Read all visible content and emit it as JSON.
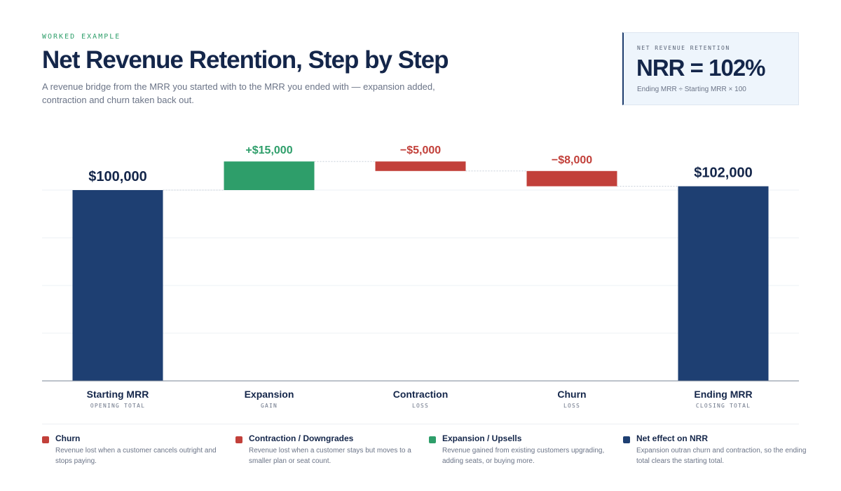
{
  "header": {
    "eyebrow": "WORKED EXAMPLE",
    "title": "Net Revenue Retention, Step by Step",
    "subtitle": "A revenue bridge from the MRR you started with to the MRR you ended with — expansion added, contraction and churn taken back out."
  },
  "kpi": {
    "label": "NET REVENUE RETENTION",
    "value": "NRR = 102%",
    "formula": "Ending MRR ÷ Starting MRR × 100"
  },
  "colors": {
    "total": "#1e3f72",
    "gain": "#2e9e6a",
    "loss": "#c2403a",
    "text_dark": "#14264a",
    "text_muted": "#6b7487"
  },
  "chart_data": {
    "type": "bar",
    "subtype": "waterfall",
    "categories": [
      "Starting MRR",
      "Expansion",
      "Contraction",
      "Churn",
      "Ending MRR"
    ],
    "sublabels": [
      "OPENING TOTAL",
      "GAIN",
      "LOSS",
      "LOSS",
      "CLOSING TOTAL"
    ],
    "kinds": [
      "total",
      "gain",
      "loss",
      "loss",
      "total"
    ],
    "values": [
      100000,
      15000,
      -5000,
      -8000,
      102000
    ],
    "value_labels": [
      "$100,000",
      "+$15,000",
      "−$5,000",
      "−$8,000",
      "$102,000"
    ],
    "ylim": [
      0,
      115000
    ],
    "grid": true,
    "connectors": true
  },
  "legend": [
    {
      "title": "Churn",
      "desc": "Revenue lost when a customer cancels outright and stops paying.",
      "color": "#c2403a"
    },
    {
      "title": "Contraction / Downgrades",
      "desc": "Revenue lost when a customer stays but moves to a smaller plan or seat count.",
      "color": "#c2403a"
    },
    {
      "title": "Expansion / Upsells",
      "desc": "Revenue gained from existing customers upgrading, adding seats, or buying more.",
      "color": "#2e9e6a"
    },
    {
      "title": "Net effect on NRR",
      "desc": "Expansion outran churn and contraction, so the ending total clears the starting total.",
      "color": "#1e3f72"
    }
  ]
}
